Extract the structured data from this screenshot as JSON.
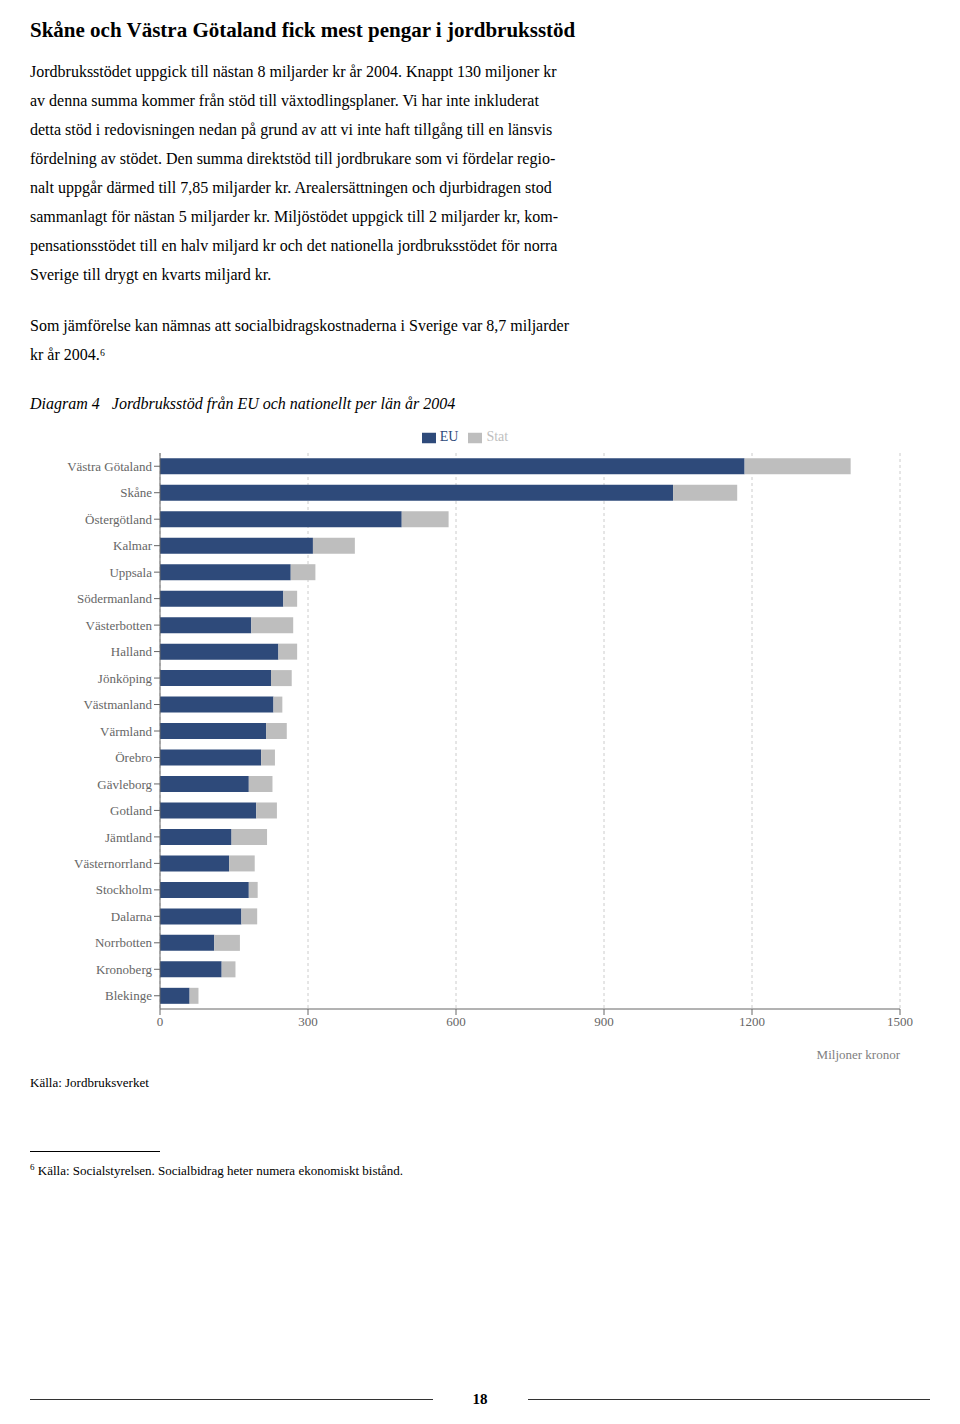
{
  "chart_data": {
    "type": "bar",
    "title": "Diagram 4   Jordbruksstöd från EU och nationellt per län år 2004",
    "orientation": "horizontal",
    "stacked": true,
    "grid": true,
    "legend": "top",
    "categories": [
      "Västra Götaland",
      "Skåne",
      "Östergötland",
      "Kalmar",
      "Uppsala",
      "Södermanland",
      "Västerbotten",
      "Halland",
      "Jönköping",
      "Västmanland",
      "Värmland",
      "Örebro",
      "Gävleborg",
      "Gotland",
      "Jämtland",
      "Västernorrland",
      "Stockholm",
      "Dalarna",
      "Norrbotten",
      "Kronoberg",
      "Blekinge"
    ],
    "series": [
      {
        "name": "EU",
        "color": "#2E4A7A",
        "values": [
          1185,
          1040,
          490,
          310,
          265,
          250,
          185,
          240,
          225,
          230,
          215,
          205,
          180,
          195,
          145,
          140,
          180,
          165,
          110,
          125,
          60
        ]
      },
      {
        "name": "Stat",
        "color": "#BEBEBE",
        "values": [
          215,
          130,
          95,
          85,
          50,
          28,
          85,
          38,
          42,
          18,
          42,
          28,
          48,
          42,
          72,
          52,
          18,
          32,
          52,
          28,
          18
        ]
      }
    ],
    "xlabel": "Miljoner kronor",
    "xlim": [
      0,
      1500
    ],
    "xticks": [
      0,
      300,
      600,
      900,
      1200,
      1500
    ],
    "annotations": [
      "Skåne och Västra Götaland fick mest pengar i jordbruksstöd",
      "Jordbruksstödet uppgick till nästan 8 miljarder kr år 2004. Knappt 130 miljoner kr",
      "av denna summa kommer från stöd till växtodlingsplaner. Vi har inte inkluderat",
      "detta stöd i redovisningen nedan på grund av att vi inte haft tillgång till en länsvis",
      "fördelning av stödet. Den summa direktstöd till jordbrukare som vi fördelar regio-",
      "nalt uppgår därmed till 7,85 miljarder kr. Arealersättningen och djurbidragen stod",
      "sammanlagt för nästan 5 miljarder kr. Miljöstödet uppgick till 2 miljarder kr, kom-",
      "pensationsstödet till en halv miljard kr och det nationella jordbruksstödet för norra",
      "Sverige till drygt en kvarts miljard kr.",
      "Som jämförelse kan nämnas att socialbidragskostnaderna i Sverige var 8,7 miljarder",
      "kr år 2004.⁶",
      "Källa: Jordbruksverket",
      "6",
      "Källa: Socialstyrelsen. Socialbidrag heter numera ekonomiskt bistånd.",
      "18"
    ]
  }
}
